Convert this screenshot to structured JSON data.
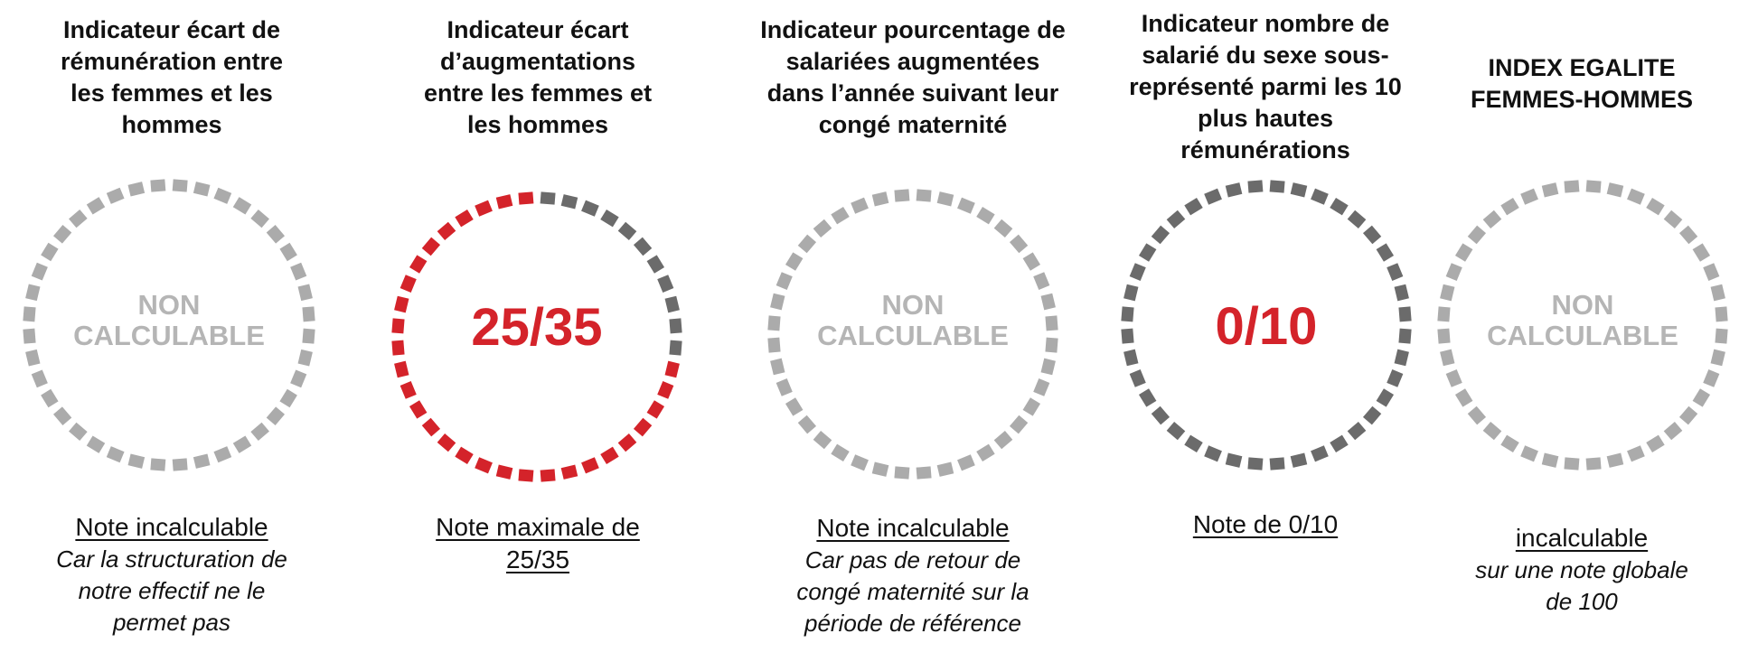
{
  "colors": {
    "red": "#d4232a",
    "dark_gray": "#6b6b6b",
    "light_gray": "#ababab",
    "text_gray": "#b5b5b5"
  },
  "indicators": [
    {
      "title_lines": [
        "Indicateur écart de",
        "rémunération entre",
        "les femmes et les",
        "hommes"
      ],
      "value_lines": [
        "NON",
        "CALCULABLE"
      ],
      "state": "non_calculable",
      "score": null,
      "max": null,
      "note_label_lines": [
        "Note incalculable"
      ],
      "note_desc_lines": [
        "Car la structuration de",
        "notre effectif ne le",
        "permet pas"
      ]
    },
    {
      "title_lines": [
        "Indicateur écart",
        "d’augmentations",
        "entre les femmes et",
        "les hommes"
      ],
      "value_lines": [
        "25/35"
      ],
      "state": "score",
      "score": 25,
      "max": 35,
      "note_label_lines": [
        "Note maximale de",
        "25/35"
      ],
      "note_desc_lines": []
    },
    {
      "title_lines": [
        "Indicateur pourcentage de",
        "salariées augmentées",
        "dans l’année suivant leur",
        "congé maternité"
      ],
      "value_lines": [
        "NON",
        "CALCULABLE"
      ],
      "state": "non_calculable",
      "score": null,
      "max": null,
      "note_label_lines": [
        "Note incalculable"
      ],
      "note_desc_lines": [
        "Car pas de retour de",
        "congé maternité sur la",
        "période de référence"
      ]
    },
    {
      "title_lines": [
        "Indicateur nombre de",
        "salarié du sexe sous-",
        "représenté parmi les 10",
        "plus hautes",
        "rémunérations"
      ],
      "value_lines": [
        "0/10"
      ],
      "state": "score",
      "score": 0,
      "max": 10,
      "note_label_lines": [
        "Note de 0/10"
      ],
      "note_desc_lines": []
    },
    {
      "title_lines": [
        "INDEX EGALITE",
        "FEMMES-HOMMES"
      ],
      "value_lines": [
        "NON",
        "CALCULABLE"
      ],
      "state": "non_calculable",
      "score": null,
      "max": null,
      "note_label_lines": [
        "incalculable"
      ],
      "note_desc_lines": [
        "sur une note globale",
        "de 100"
      ]
    }
  ]
}
